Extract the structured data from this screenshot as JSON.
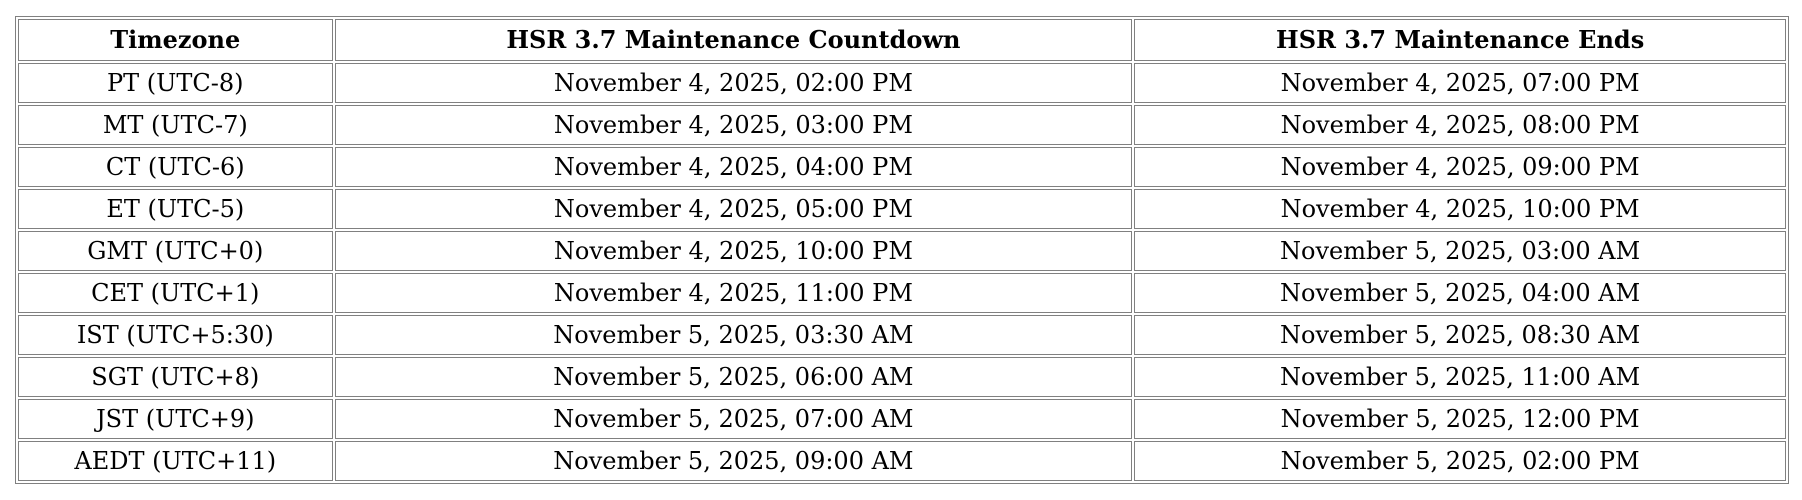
{
  "table": {
    "headers": [
      "Timezone",
      "HSR 3.7 Maintenance Countdown",
      "HSR 3.7 Maintenance Ends"
    ],
    "rows": [
      [
        "PT (UTC-8)",
        "November 4, 2025, 02:00 PM",
        "November 4, 2025, 07:00 PM"
      ],
      [
        "MT (UTC-7)",
        "November 4, 2025, 03:00 PM",
        "November 4, 2025, 08:00 PM"
      ],
      [
        "CT (UTC-6)",
        "November 4, 2025, 04:00 PM",
        "November 4, 2025, 09:00 PM"
      ],
      [
        "ET (UTC-5)",
        "November 4, 2025, 05:00 PM",
        "November 4, 2025, 10:00 PM"
      ],
      [
        "GMT (UTC+0)",
        "November 4, 2025, 10:00 PM",
        "November 5, 2025, 03:00 AM"
      ],
      [
        "CET (UTC+1)",
        "November 4, 2025, 11:00 PM",
        "November 5, 2025, 04:00 AM"
      ],
      [
        "IST (UTC+5:30)",
        "November 5, 2025, 03:30 AM",
        "November 5, 2025, 08:30 AM"
      ],
      [
        "SGT (UTC+8)",
        "November 5, 2025, 06:00 AM",
        "November 5, 2025, 11:00 AM"
      ],
      [
        "JST (UTC+9)",
        "November 5, 2025, 07:00 AM",
        "November 5, 2025, 12:00 PM"
      ],
      [
        "AEDT (UTC+11)",
        "November 5, 2025, 09:00 AM",
        "November 5, 2025, 02:00 PM"
      ]
    ]
  }
}
